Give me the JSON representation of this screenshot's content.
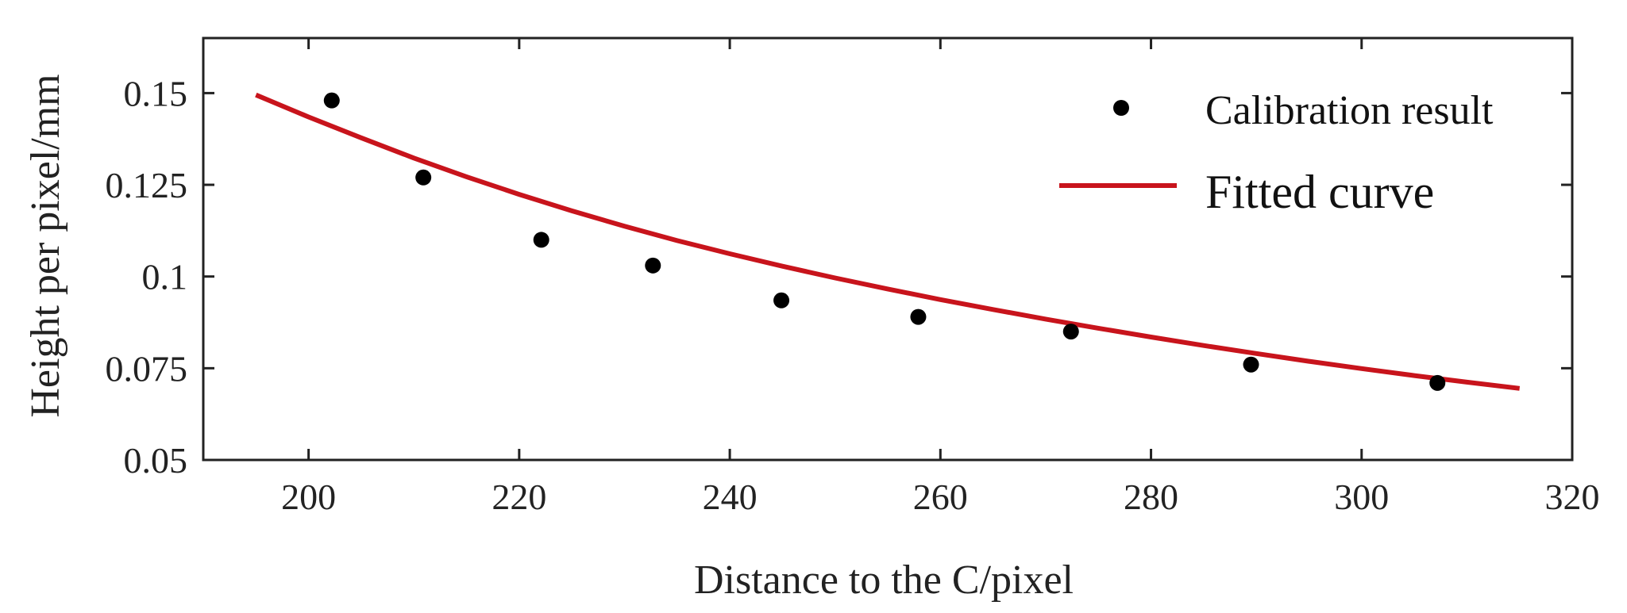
{
  "chart_data": {
    "type": "scatter",
    "xlabel": "Distance to the C/pixel",
    "ylabel": "Height per pixel/mm",
    "xlim": [
      190,
      320
    ],
    "ylim": [
      0.05,
      0.165
    ],
    "x_ticks": [
      200,
      220,
      240,
      260,
      280,
      300,
      320
    ],
    "y_ticks": [
      0.05,
      0.075,
      0.1,
      0.125,
      0.15
    ],
    "x_tick_labels": [
      "200",
      "220",
      "240",
      "260",
      "280",
      "300",
      "320"
    ],
    "y_tick_labels": [
      "0.05",
      "0.075",
      "0.1",
      "0.125",
      "0.15"
    ],
    "legend_position": "top-right",
    "grid": false,
    "series": [
      {
        "name": "Calibration result",
        "kind": "scatter",
        "color": "#000000",
        "x": [
          202.2,
          210.9,
          222.1,
          232.7,
          244.9,
          257.9,
          272.4,
          289.5,
          307.2
        ],
        "y": [
          0.148,
          0.127,
          0.11,
          0.103,
          0.0935,
          0.089,
          0.085,
          0.076,
          0.071
        ]
      },
      {
        "name": "Fitted curve",
        "kind": "line",
        "color": "#c8141c",
        "x": [
          195,
          200,
          205,
          210,
          215,
          220,
          225,
          230,
          235,
          240,
          245,
          250,
          255,
          260,
          265,
          270,
          275,
          280,
          285,
          290,
          295,
          300,
          305,
          310,
          315
        ],
        "y": [
          0.1495,
          0.1435,
          0.1378,
          0.1323,
          0.1272,
          0.1224,
          0.1179,
          0.1137,
          0.1098,
          0.1062,
          0.1028,
          0.0996,
          0.0966,
          0.0937,
          0.091,
          0.0884,
          0.0859,
          0.0835,
          0.0812,
          0.079,
          0.0769,
          0.0749,
          0.073,
          0.0712,
          0.0695
        ]
      }
    ]
  }
}
